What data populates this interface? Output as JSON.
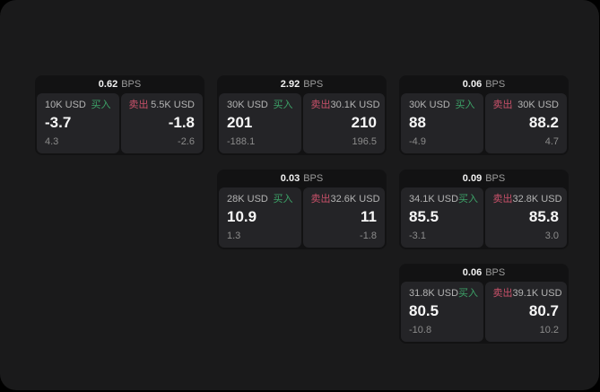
{
  "labels": {
    "bps_unit": "BPS",
    "buy": "买入",
    "sell": "卖出"
  },
  "colors": {
    "buy_green": "#3da368",
    "sell_red": "#c9516a",
    "window_bg": "#1a1a1b",
    "card_bg": "#121213",
    "panel_bg": "#242427"
  },
  "cards": [
    {
      "bps": "0.62",
      "buy": {
        "amount": "10K USD",
        "price": "-3.7",
        "sub": "4.3"
      },
      "sell": {
        "amount": "5.5K USD",
        "price": "-1.8",
        "sub": "-2.6"
      }
    },
    {
      "bps": "2.92",
      "buy": {
        "amount": "30K USD",
        "price": "201",
        "sub": "-188.1"
      },
      "sell": {
        "amount": "30.1K USD",
        "price": "210",
        "sub": "196.5"
      }
    },
    {
      "bps": "0.06",
      "buy": {
        "amount": "30K USD",
        "price": "88",
        "sub": "-4.9"
      },
      "sell": {
        "amount": "30K USD",
        "price": "88.2",
        "sub": "4.7"
      }
    },
    {
      "bps": "0.03",
      "buy": {
        "amount": "28K USD",
        "price": "10.9",
        "sub": "1.3"
      },
      "sell": {
        "amount": "32.6K USD",
        "price": "11",
        "sub": "-1.8"
      }
    },
    {
      "bps": "0.09",
      "buy": {
        "amount": "34.1K USD",
        "price": "85.5",
        "sub": "-3.1"
      },
      "sell": {
        "amount": "32.8K USD",
        "price": "85.8",
        "sub": "3.0"
      }
    },
    {
      "bps": "0.06",
      "buy": {
        "amount": "31.8K USD",
        "price": "80.5",
        "sub": "-10.8"
      },
      "sell": {
        "amount": "39.1K USD",
        "price": "80.7",
        "sub": "10.2"
      }
    }
  ]
}
